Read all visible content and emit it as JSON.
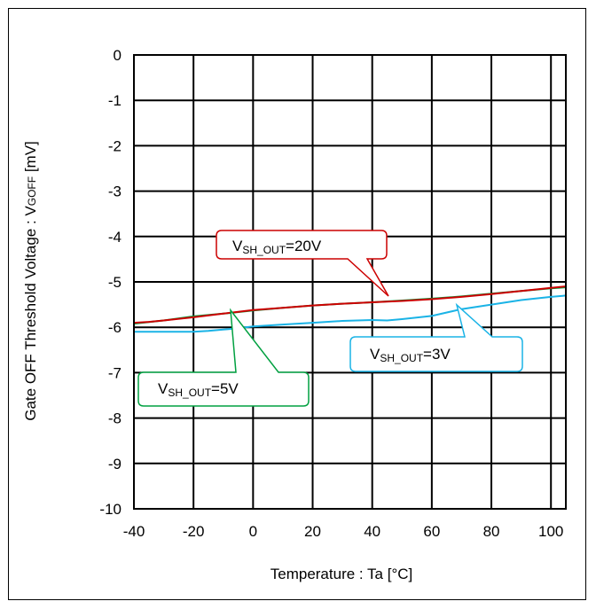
{
  "chart_data": {
    "type": "line",
    "xlabel": "Temperature : Ta [°C]",
    "ylabel_main": "Gate OFF Threshold Voltage : V",
    "ylabel_sub": "GOFF",
    "ylabel_unit": " [mV]",
    "xlim": [
      -40,
      105
    ],
    "ylim": [
      -10,
      0
    ],
    "x_ticks": [
      -40,
      -20,
      0,
      20,
      40,
      60,
      80,
      100
    ],
    "y_ticks": [
      0,
      -1,
      -2,
      -3,
      -4,
      -5,
      -6,
      -7,
      -8,
      -9,
      -10
    ],
    "grid": true,
    "series": [
      {
        "name": "VSH_OUT=20V",
        "label_main": "V",
        "label_sub": "SH_OUT",
        "label_rest": "=20V",
        "color": "#cc0000",
        "x": [
          -40,
          -35,
          -30,
          -20,
          -10,
          0,
          10,
          20,
          30,
          40,
          50,
          60,
          70,
          80,
          90,
          100,
          105
        ],
        "y": [
          -5.9,
          -5.88,
          -5.85,
          -5.78,
          -5.7,
          -5.62,
          -5.57,
          -5.52,
          -5.48,
          -5.45,
          -5.42,
          -5.38,
          -5.33,
          -5.27,
          -5.2,
          -5.13,
          -5.1
        ]
      },
      {
        "name": "VSH_OUT=5V",
        "label_main": "V",
        "label_sub": "SH_OUT",
        "label_rest": "=5V",
        "color": "#00a040",
        "x": [
          -40,
          -30,
          -20,
          -10,
          0,
          10,
          20,
          30,
          40,
          50,
          60,
          70,
          80,
          90,
          100,
          105
        ],
        "y": [
          -5.92,
          -5.85,
          -5.76,
          -5.7,
          -5.63,
          -5.57,
          -5.52,
          -5.48,
          -5.45,
          -5.41,
          -5.37,
          -5.32,
          -5.26,
          -5.2,
          -5.14,
          -5.12
        ]
      },
      {
        "name": "VSH_OUT=3V",
        "label_main": "V",
        "label_sub": "SH_OUT",
        "label_rest": "=3V",
        "color": "#1ab3e6",
        "x": [
          -40,
          -30,
          -20,
          -15,
          -10,
          -5,
          0,
          10,
          20,
          30,
          40,
          45,
          50,
          60,
          70,
          80,
          90,
          100,
          105
        ],
        "y": [
          -6.1,
          -6.1,
          -6.1,
          -6.08,
          -6.05,
          -6.02,
          -5.98,
          -5.94,
          -5.9,
          -5.86,
          -5.84,
          -5.85,
          -5.82,
          -5.75,
          -5.6,
          -5.5,
          -5.4,
          -5.33,
          -5.3
        ]
      }
    ]
  }
}
